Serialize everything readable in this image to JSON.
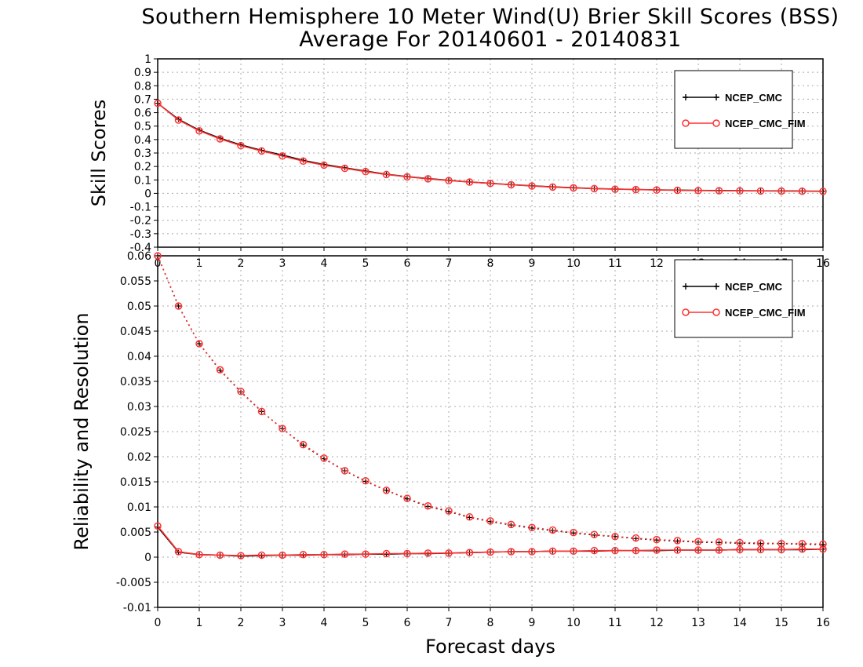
{
  "title_line1": "Southern Hemisphere 10 Meter Wind(U) Brier Skill Scores (BSS)",
  "title_line2": "Average For 20140601 - 20140831",
  "xlabel": "Forecast days",
  "colors": {
    "ncep_cmc": "#000000",
    "ncep_cmc_fim": "#ff3030",
    "grid": "#aaaaaa"
  },
  "chart_data": [
    {
      "type": "line",
      "ylabel": "Skill Scores",
      "xlim": [
        0,
        16
      ],
      "ylim": [
        -0.4,
        1
      ],
      "x_ticks": [
        0,
        1,
        2,
        3,
        4,
        5,
        6,
        7,
        8,
        9,
        10,
        11,
        12,
        13,
        14,
        15,
        16
      ],
      "y_ticks": [
        -0.4,
        -0.3,
        -0.2,
        -0.1,
        0,
        0.1,
        0.2,
        0.3,
        0.4,
        0.5,
        0.6,
        0.7,
        0.8,
        0.9,
        1
      ],
      "y_tick_labels": [
        "-0.4",
        "-0.3",
        "-0.2",
        "-0.1",
        "0",
        "0.1",
        "0.2",
        "0.3",
        "0.4",
        "0.5",
        "0.6",
        "0.7",
        "0.8",
        "0.9",
        "1"
      ],
      "grid": true,
      "legend_position": "top-right",
      "x": [
        0,
        0.5,
        1,
        1.5,
        2,
        2.5,
        3,
        3.5,
        4,
        4.5,
        5,
        5.5,
        6,
        6.5,
        7,
        7.5,
        8,
        8.5,
        9,
        9.5,
        10,
        10.5,
        11,
        11.5,
        12,
        12.5,
        13,
        13.5,
        14,
        14.5,
        15,
        15.5,
        16
      ],
      "series": [
        {
          "name": "NCEP_CMC",
          "style": "solid",
          "marker": "plus",
          "values": [
            0.67,
            0.55,
            0.47,
            0.41,
            0.36,
            0.32,
            0.285,
            0.245,
            0.215,
            0.19,
            0.165,
            0.142,
            0.125,
            0.11,
            0.097,
            0.085,
            0.075,
            0.065,
            0.056,
            0.048,
            0.042,
            0.036,
            0.032,
            0.029,
            0.026,
            0.024,
            0.022,
            0.021,
            0.02,
            0.019,
            0.018,
            0.017,
            0.016
          ]
        },
        {
          "name": "NCEP_CMC_FIM",
          "style": "solid",
          "marker": "circle",
          "values": [
            0.67,
            0.545,
            0.465,
            0.405,
            0.355,
            0.315,
            0.278,
            0.24,
            0.21,
            0.186,
            0.162,
            0.14,
            0.123,
            0.108,
            0.095,
            0.084,
            0.074,
            0.064,
            0.055,
            0.047,
            0.041,
            0.035,
            0.031,
            0.028,
            0.025,
            0.023,
            0.021,
            0.02,
            0.019,
            0.018,
            0.017,
            0.016,
            0.015
          ]
        }
      ]
    },
    {
      "type": "line",
      "ylabel": "Reliability and Resolution",
      "xlim": [
        0,
        16
      ],
      "ylim": [
        -0.01,
        0.06
      ],
      "x_ticks": [
        0,
        1,
        2,
        3,
        4,
        5,
        6,
        7,
        8,
        9,
        10,
        11,
        12,
        13,
        14,
        15,
        16
      ],
      "y_ticks": [
        -0.01,
        -0.005,
        0,
        0.005,
        0.01,
        0.015,
        0.02,
        0.025,
        0.03,
        0.035,
        0.04,
        0.045,
        0.05,
        0.055,
        0.06
      ],
      "y_tick_labels": [
        "-0.01",
        "-0.005",
        "0",
        "0.005",
        "0.01",
        "0.015",
        "0.02",
        "0.025",
        "0.03",
        "0.035",
        "0.04",
        "0.045",
        "0.05",
        "0.055",
        "0.06"
      ],
      "grid": true,
      "legend_position": "top-right",
      "x": [
        0,
        0.5,
        1,
        1.5,
        2,
        2.5,
        3,
        3.5,
        4,
        4.5,
        5,
        5.5,
        6,
        6.5,
        7,
        7.5,
        8,
        8.5,
        9,
        9.5,
        10,
        10.5,
        11,
        11.5,
        12,
        12.5,
        13,
        13.5,
        14,
        14.5,
        15,
        15.5,
        16
      ],
      "series": [
        {
          "name": "NCEP_CMC",
          "style": "solid",
          "marker": "plus",
          "values": [
            0.006,
            0.001,
            0.0005,
            0.0004,
            0.0002,
            0.0003,
            0.0004,
            0.0004,
            0.0005,
            0.0005,
            0.0006,
            0.0006,
            0.0007,
            0.0007,
            0.0008,
            0.0009,
            0.001,
            0.0011,
            0.0011,
            0.0012,
            0.0012,
            0.0012,
            0.0013,
            0.0013,
            0.0013,
            0.0014,
            0.0014,
            0.0014,
            0.0015,
            0.0015,
            0.0015,
            0.0015,
            0.0016
          ]
        },
        {
          "name": "NCEP_CMC_FIM",
          "style": "solid",
          "marker": "circle",
          "values": [
            0.0062,
            0.0011,
            0.0005,
            0.0004,
            0.0003,
            0.0004,
            0.0004,
            0.0005,
            0.0005,
            0.0006,
            0.0006,
            0.0007,
            0.0007,
            0.0008,
            0.0008,
            0.0009,
            0.001,
            0.0011,
            0.0011,
            0.0012,
            0.0012,
            0.0013,
            0.0013,
            0.0013,
            0.0014,
            0.0014,
            0.0014,
            0.0014,
            0.0015,
            0.0015,
            0.0015,
            0.0016,
            0.0016
          ]
        },
        {
          "name": "NCEP_CMC",
          "style": "dotted",
          "marker": "plus",
          "values": [
            0.06,
            0.05,
            0.0425,
            0.0372,
            0.0329,
            0.029,
            0.0256,
            0.0223,
            0.0196,
            0.0172,
            0.0151,
            0.0133,
            0.0116,
            0.0101,
            0.0091,
            0.0079,
            0.0071,
            0.0064,
            0.0058,
            0.0053,
            0.0048,
            0.0044,
            0.0041,
            0.0037,
            0.0034,
            0.0032,
            0.003,
            0.0029,
            0.0028,
            0.0027,
            0.0027,
            0.0026,
            0.0025
          ]
        },
        {
          "name": "NCEP_CMC_FIM",
          "style": "dotted",
          "marker": "circle",
          "values": [
            0.06,
            0.05,
            0.0425,
            0.0373,
            0.033,
            0.029,
            0.0256,
            0.0224,
            0.0197,
            0.0172,
            0.0152,
            0.0133,
            0.0117,
            0.0102,
            0.0092,
            0.008,
            0.0072,
            0.0065,
            0.0059,
            0.0054,
            0.0049,
            0.0045,
            0.0041,
            0.0038,
            0.0035,
            0.0033,
            0.0031,
            0.003,
            0.0029,
            0.0028,
            0.0027,
            0.0027,
            0.0026
          ]
        }
      ]
    }
  ]
}
